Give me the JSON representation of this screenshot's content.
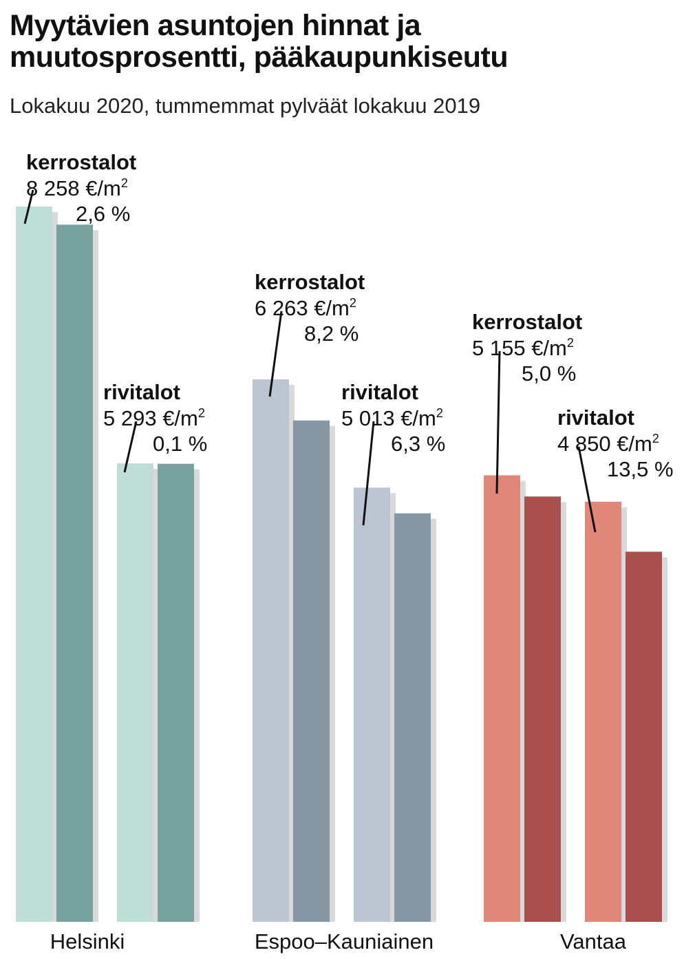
{
  "header": {
    "title_line1": "Myytävien asuntojen hinnat ja",
    "title_line2": "muutosprosentti, pääkaupunkiseutu",
    "subtitle": "Lokakuu 2020, tummemmat pylväät lokakuu 2019"
  },
  "chart_data": {
    "type": "bar",
    "title": "Myytävien asuntojen hinnat ja muutosprosentti, pääkaupunkiseutu",
    "subtitle": "Lokakuu 2020, tummemmat pylväät lokakuu 2019",
    "unit": "€/m²",
    "categories": [
      "Helsinki",
      "Espoo–Kauniainen",
      "Vantaa"
    ],
    "groups": [
      {
        "name": "Helsinki",
        "light_color": "#bfded7",
        "dark_color": "#78a2a0",
        "types": [
          {
            "type": "kerrostalot",
            "value_2020": 8258,
            "value_2019": 8049,
            "price_label": "8 258 €/m",
            "change_label": "2,6 %",
            "change": 2.6
          },
          {
            "type": "rivitalot",
            "value_2020": 5293,
            "value_2019": 5288,
            "price_label": "5 293 €/m",
            "change_label": "0,1 %",
            "change": 0.1
          }
        ]
      },
      {
        "name": "Espoo–Kauniainen",
        "light_color": "#bbc6d2",
        "dark_color": "#8796a3",
        "types": [
          {
            "type": "kerrostalot",
            "value_2020": 6263,
            "value_2019": 5788,
            "price_label": "6 263 €/m",
            "change_label": "8,2 %",
            "change": 8.2
          },
          {
            "type": "rivitalot",
            "value_2020": 5013,
            "value_2019": 4716,
            "price_label": "5 013 €/m",
            "change_label": "6,3 %",
            "change": 6.3
          }
        ]
      },
      {
        "name": "Vantaa",
        "light_color": "#e0877a",
        "dark_color": "#a94f4e",
        "types": [
          {
            "type": "kerrostalot",
            "value_2020": 5155,
            "value_2019": 4910,
            "price_label": "5 155 €/m",
            "change_label": "5,0 %",
            "change": 5.0
          },
          {
            "type": "rivitalot",
            "value_2020": 4850,
            "value_2019": 4273,
            "price_label": "4 850 €/m",
            "change_label": "13,5 %",
            "change": 13.5
          }
        ]
      }
    ],
    "superscript": "2",
    "ylim": [
      0,
      8258
    ],
    "grid": false,
    "legend": "none"
  }
}
